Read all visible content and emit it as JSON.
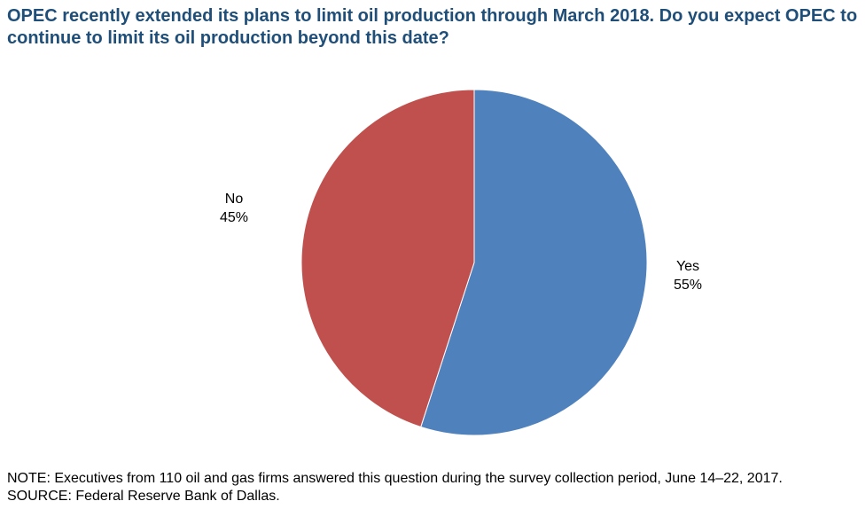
{
  "chart_data": {
    "type": "pie",
    "title": "OPEC recently extended its plans to limit oil production through March 2018. Do you expect OPEC to continue to limit its oil production beyond this date?",
    "slices": [
      {
        "label": "Yes",
        "value": 55,
        "value_text": "55%",
        "color": "#4f81bd"
      },
      {
        "label": "No",
        "value": 45,
        "value_text": "45%",
        "color": "#c0504d"
      }
    ],
    "start_angle_deg": 0,
    "direction": "clockwise"
  },
  "footer": {
    "note": "NOTE: Executives from 110 oil and gas firms answered this question during the survey collection period, June 14–22, 2017.",
    "source": "SOURCE: Federal Reserve Bank of Dallas."
  }
}
